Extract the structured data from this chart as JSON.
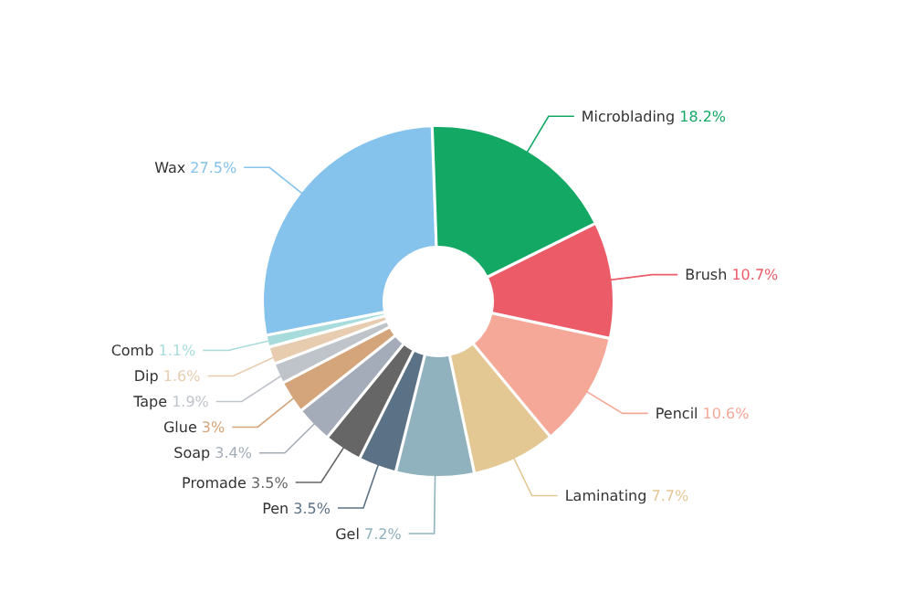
{
  "chart_data": {
    "type": "donut",
    "categories": [
      "Microblading",
      "Brush",
      "Pencil",
      "Laminating",
      "Gel",
      "Pen",
      "Promade",
      "Soap",
      "Glue",
      "Tape",
      "Dip",
      "Comb",
      "Wax"
    ],
    "values": [
      18.2,
      10.7,
      10.6,
      7.7,
      7.2,
      3.5,
      3.5,
      3.4,
      3,
      1.9,
      1.6,
      1.1,
      27.5
    ],
    "value_labels": [
      "18.2%",
      "10.7%",
      "10.6%",
      "7.7%",
      "7.2%",
      "3.5%",
      "3.5%",
      "3.4%",
      "3%",
      "1.9%",
      "1.6%",
      "1.1%",
      "27.5%"
    ],
    "colors": [
      "#14a865",
      "#eb5c68",
      "#f5a898",
      "#e3c894",
      "#8fb2be",
      "#5b7186",
      "#666666",
      "#a3acb8",
      "#d4a47a",
      "#bfc4cb",
      "#e8ccb0",
      "#a8dcdc",
      "#85c3ec"
    ]
  }
}
